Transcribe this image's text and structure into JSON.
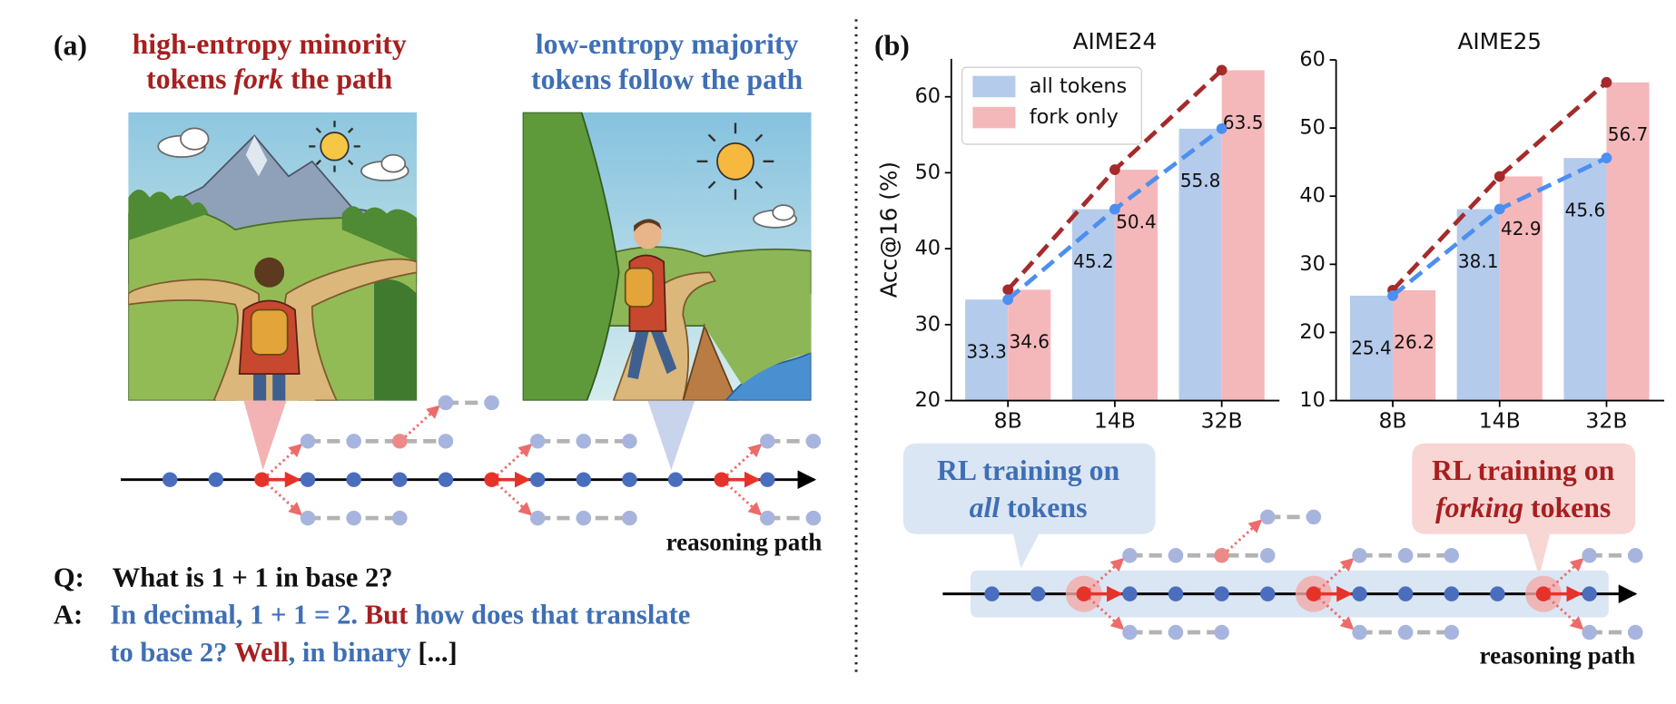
{
  "panel_a": {
    "label": "(a)",
    "left_heading": {
      "line1": "high-entropy minority",
      "line2_pre": "tokens",
      "line2_em": "fork",
      "line2_post": "the path",
      "color": "#a71f1f"
    },
    "right_heading": {
      "line1": "low-entropy majority",
      "line2": "tokens follow the path",
      "color": "#3f6fb5"
    },
    "path_label": "reasoning path",
    "question": {
      "prefix": "Q:",
      "text": "What is 1 + 1 in base 2?"
    },
    "answer": {
      "prefix": "A:",
      "line1": [
        {
          "text": "In decimal, 1 + 1 = 2.",
          "color": "#3f6fb5"
        },
        {
          "text": "But",
          "color": "#a71f1f"
        },
        {
          "text": "how does that translate",
          "color": "#3f6fb5"
        }
      ],
      "line2": [
        {
          "text": "to base 2?",
          "color": "#3f6fb5"
        },
        {
          "text": "Well",
          "color": "#a71f1f"
        },
        {
          "text": ",",
          "color": "#3f6fb5"
        },
        {
          "text": "in binary",
          "color": "#3f6fb5"
        },
        {
          "text": "[...]",
          "color": "#111111"
        }
      ]
    }
  },
  "panel_b": {
    "label": "(b)",
    "left_callout": {
      "line1": "RL training on",
      "line2_em": "all",
      "line2_post": "tokens",
      "color": "#3f6fb5"
    },
    "right_callout": {
      "line1": "RL training on",
      "line2_em": "forking",
      "line2_post": "tokens",
      "color": "#a71f1f"
    },
    "path_label": "reasoning path"
  },
  "chart_data": [
    {
      "type": "bar",
      "title": "AIME24",
      "ylabel": "Acc@16 (%)",
      "categories": [
        "8B",
        "14B",
        "32B"
      ],
      "series": [
        {
          "name": "all tokens",
          "color": "#b5cbec",
          "line_color": "#4b8ff0",
          "values": [
            33.3,
            45.2,
            55.8
          ]
        },
        {
          "name": "fork only",
          "color": "#f5b8ba",
          "line_color": "#a52a2a",
          "values": [
            34.6,
            50.4,
            63.5
          ]
        }
      ],
      "ylim": [
        20,
        65
      ],
      "yticks": [
        20,
        30,
        40,
        50,
        60
      ],
      "legend": "upper left"
    },
    {
      "type": "bar",
      "title": "AIME25",
      "categories": [
        "8B",
        "14B",
        "32B"
      ],
      "series": [
        {
          "color": "#b5cbec",
          "line_color": "#4b8ff0",
          "values": [
            25.4,
            38.1,
            45.6
          ]
        },
        {
          "color": "#f5b8ba",
          "line_color": "#a52a2a",
          "values": [
            26.2,
            42.9,
            56.7
          ]
        }
      ],
      "ylim": [
        10,
        60
      ],
      "yticks": [
        10,
        20,
        30,
        40,
        50,
        60
      ]
    }
  ]
}
